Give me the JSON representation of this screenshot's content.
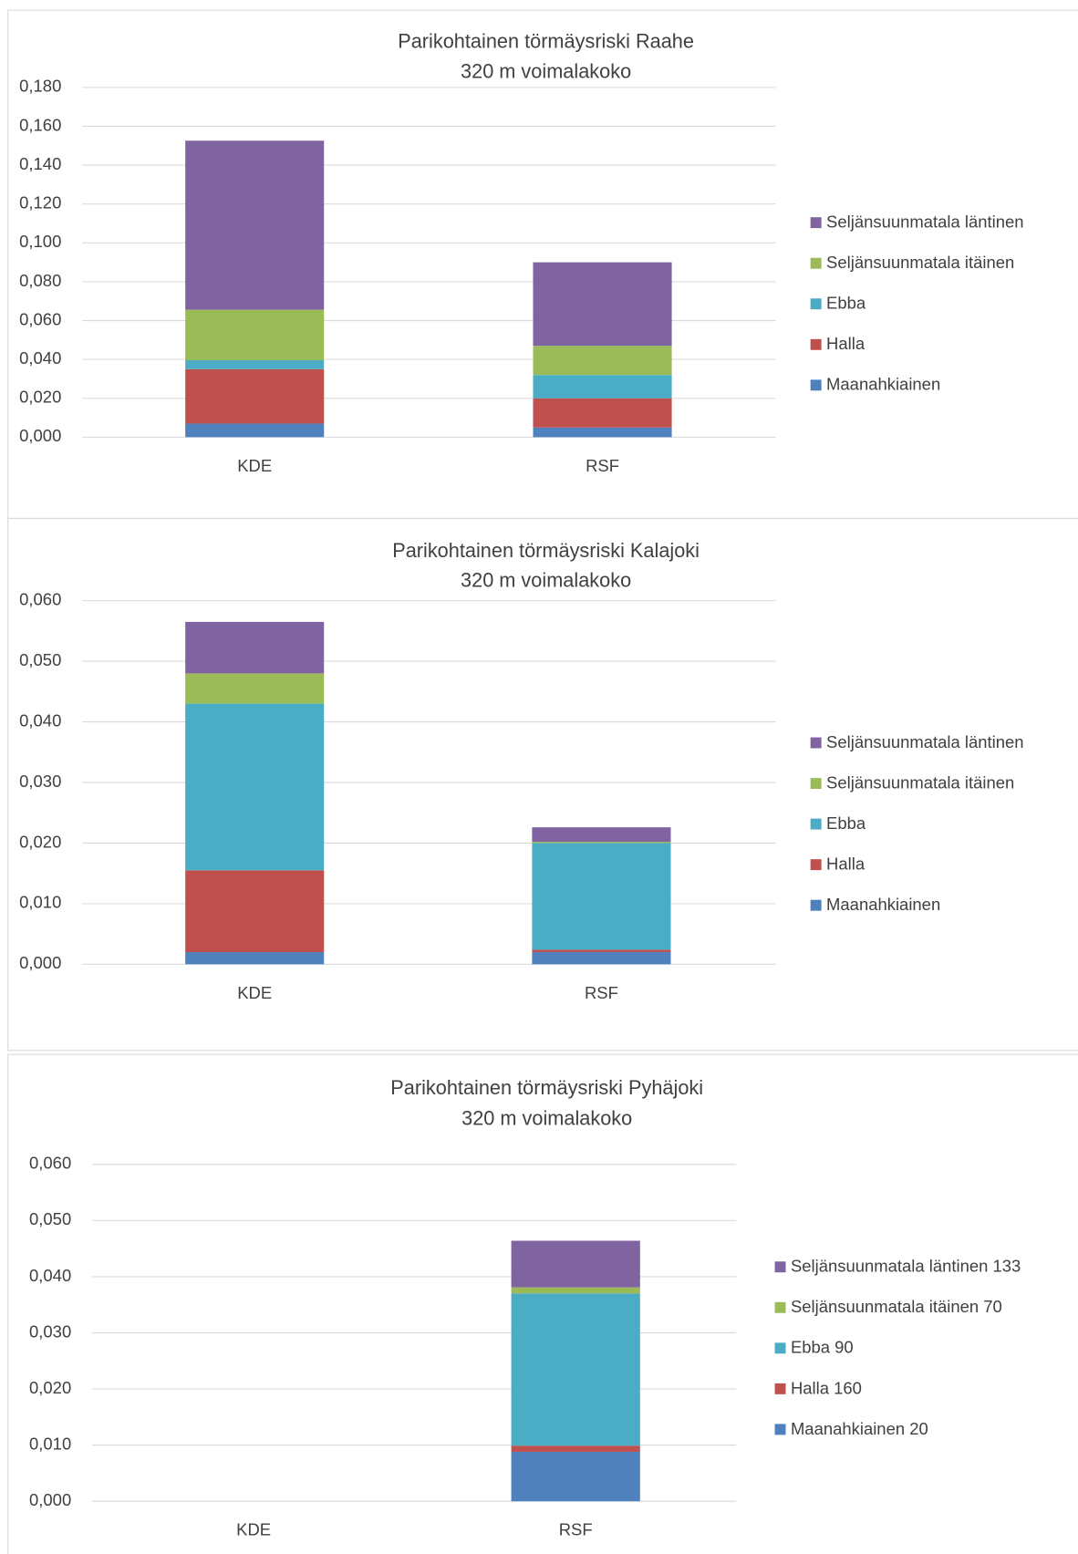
{
  "chart_data": [
    {
      "type": "bar",
      "stacked": true,
      "title": "Parikohtainen törmäysriski Raahe",
      "subtitle": "320 m voimalakoko",
      "categories": [
        "KDE",
        "RSF"
      ],
      "series": [
        {
          "name": "Maanahkiainen",
          "color": "#4f81bd",
          "values": [
            0.007,
            0.005
          ]
        },
        {
          "name": "Halla",
          "color": "#c0504d",
          "values": [
            0.028,
            0.015
          ]
        },
        {
          "name": "Ebba",
          "color": "#4bacc6",
          "values": [
            0.0046,
            0.012
          ]
        },
        {
          "name": "Seljänsuunmatala itäinen",
          "color": "#9bbb59",
          "values": [
            0.026,
            0.015
          ]
        },
        {
          "name": "Seljänsuunmatala läntinen",
          "color": "#8064a2",
          "values": [
            0.087,
            0.043
          ]
        }
      ],
      "ylim": [
        0,
        0.18
      ],
      "yticks": [
        {
          "value": 0,
          "label": "0,000"
        },
        {
          "value": 0.02,
          "label": "0,020"
        },
        {
          "value": 0.04,
          "label": "0,040"
        },
        {
          "value": 0.06,
          "label": "0,060"
        },
        {
          "value": 0.08,
          "label": "0,080"
        },
        {
          "value": 0.1,
          "label": "0,100"
        },
        {
          "value": 0.12,
          "label": "0,120"
        },
        {
          "value": 0.14,
          "label": "0,140"
        },
        {
          "value": 0.16,
          "label": "0,160"
        },
        {
          "value": 0.18,
          "label": "0,180"
        }
      ],
      "grid": true,
      "legend": "right"
    },
    {
      "type": "bar",
      "stacked": true,
      "title": "Parikohtainen törmäysriski Kalajoki",
      "subtitle": "320 m voimalakoko",
      "categories": [
        "KDE",
        "RSF"
      ],
      "series": [
        {
          "name": "Maanahkiainen",
          "color": "#4f81bd",
          "values": [
            0.002,
            0.002
          ]
        },
        {
          "name": "Halla",
          "color": "#c0504d",
          "values": [
            0.0135,
            0.0004
          ]
        },
        {
          "name": "Ebba",
          "color": "#4bacc6",
          "values": [
            0.0275,
            0.0176
          ]
        },
        {
          "name": "Seljänsuunmatala itäinen",
          "color": "#9bbb59",
          "values": [
            0.005,
            0.0002
          ]
        },
        {
          "name": "Seljänsuunmatala läntinen",
          "color": "#8064a2",
          "values": [
            0.0085,
            0.0024
          ]
        }
      ],
      "ylim": [
        0,
        0.06
      ],
      "yticks": [
        {
          "value": 0,
          "label": "0,000"
        },
        {
          "value": 0.01,
          "label": "0,010"
        },
        {
          "value": 0.02,
          "label": "0,020"
        },
        {
          "value": 0.03,
          "label": "0,030"
        },
        {
          "value": 0.04,
          "label": "0,040"
        },
        {
          "value": 0.05,
          "label": "0,050"
        },
        {
          "value": 0.06,
          "label": "0,060"
        }
      ],
      "grid": true,
      "legend": "right"
    },
    {
      "type": "bar",
      "stacked": true,
      "title": "Parikohtainen törmäysriski Pyhäjoki",
      "subtitle": "320 m voimalakoko",
      "categories": [
        "KDE",
        "RSF"
      ],
      "series": [
        {
          "name": "Maanahkiainen 20",
          "color": "#4f81bd",
          "values": [
            null,
            0.0088
          ]
        },
        {
          "name": "Halla 160",
          "color": "#c0504d",
          "values": [
            null,
            0.0011
          ]
        },
        {
          "name": "Ebba 90",
          "color": "#4bacc6",
          "values": [
            null,
            0.0271
          ]
        },
        {
          "name": "Seljänsuunmatala itäinen 70",
          "color": "#9bbb59",
          "values": [
            null,
            0.0011
          ]
        },
        {
          "name": "Seljänsuunmatala läntinen 133",
          "color": "#8064a2",
          "values": [
            null,
            0.0083
          ]
        }
      ],
      "ylim": [
        0,
        0.06
      ],
      "yticks": [
        {
          "value": 0,
          "label": "0,000"
        },
        {
          "value": 0.01,
          "label": "0,010"
        },
        {
          "value": 0.02,
          "label": "0,020"
        },
        {
          "value": 0.03,
          "label": "0,030"
        },
        {
          "value": 0.04,
          "label": "0,040"
        },
        {
          "value": 0.05,
          "label": "0,050"
        },
        {
          "value": 0.06,
          "label": "0,060"
        }
      ],
      "grid": true,
      "legend": "right"
    }
  ]
}
